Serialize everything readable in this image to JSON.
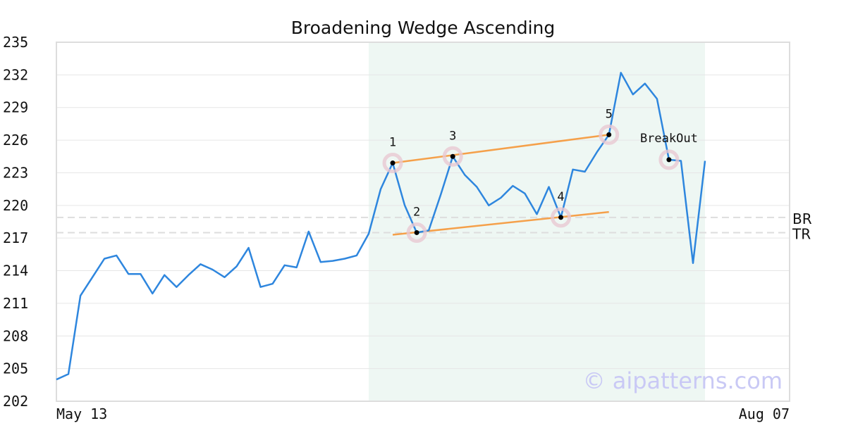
{
  "chart_data": {
    "type": "line",
    "title": "Broadening Wedge Ascending",
    "x_labels": [
      "May 13",
      "Aug 07"
    ],
    "ylim": [
      202,
      235
    ],
    "yticks": [
      202,
      205,
      208,
      211,
      214,
      217,
      220,
      223,
      226,
      229,
      232,
      235
    ],
    "grid": true,
    "series": [
      {
        "color": "#2e86de",
        "values": [
          204.0,
          204.5,
          211.7,
          213.4,
          215.1,
          215.4,
          213.7,
          213.7,
          211.9,
          213.6,
          212.5,
          213.6,
          214.6,
          214.1,
          213.4,
          214.4,
          216.1,
          212.5,
          212.8,
          214.5,
          214.3,
          217.6,
          214.8,
          214.9,
          215.1,
          215.4,
          217.4,
          221.5,
          223.9,
          220.0,
          217.5,
          217.7,
          221.0,
          224.5,
          222.8,
          221.7,
          220.0,
          220.7,
          221.8,
          221.1,
          219.2,
          221.7,
          218.9,
          223.3,
          223.1,
          224.9,
          226.5,
          232.2,
          230.2,
          231.2,
          229.8,
          224.2,
          224.1,
          214.7,
          224.1
        ]
      }
    ],
    "shaded_region": {
      "from_index": 26,
      "to_index": 54,
      "color": "#eef7f3"
    },
    "trendlines": [
      {
        "name": "upper",
        "from": {
          "index": 28,
          "value": 223.9
        },
        "to": {
          "index": 46,
          "value": 226.5
        },
        "color": "#f5a04a"
      },
      {
        "name": "lower",
        "from": {
          "index": 28,
          "value": 217.3
        },
        "to": {
          "index": 46,
          "value": 219.4
        },
        "color": "#f5a04a"
      }
    ],
    "reference_lines": [
      {
        "label": "BR",
        "value": 218.9
      },
      {
        "label": "TR",
        "value": 217.5
      }
    ],
    "pattern_points": [
      {
        "label": "1",
        "index": 28,
        "value": 223.9
      },
      {
        "label": "2",
        "index": 30,
        "value": 217.5
      },
      {
        "label": "3",
        "index": 33,
        "value": 224.5
      },
      {
        "label": "4",
        "index": 42,
        "value": 218.9
      },
      {
        "label": "5",
        "index": 46,
        "value": 226.5
      },
      {
        "label": "BreakOut",
        "index": 51,
        "value": 224.2
      }
    ],
    "watermark": "© aipatterns.com"
  }
}
